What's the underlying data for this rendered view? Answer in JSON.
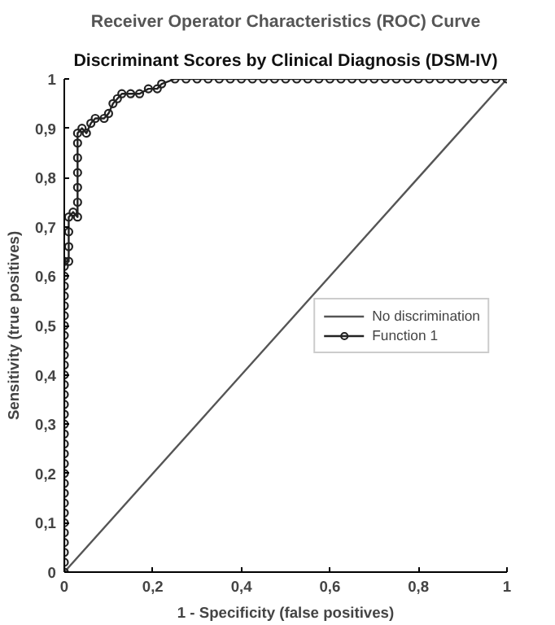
{
  "chart_data": {
    "type": "line",
    "title": "Receiver Operator Characteristics (ROC) Curve",
    "subtitle": "Discriminant Scores by Clinical Diagnosis (DSM-IV)",
    "xlabel": "1 - Specificity (false positives)",
    "ylabel": "Sensitivity (true positives)",
    "xlim": [
      0,
      1
    ],
    "ylim": [
      0,
      1
    ],
    "xticks": [
      0,
      {
        "value": 0.2,
        "label": "0,2"
      },
      {
        "value": 0.4,
        "label": "0,4"
      },
      {
        "value": 0.6,
        "label": "0,6"
      },
      {
        "value": 0.8,
        "label": "0,8"
      },
      1
    ],
    "yticks": [
      0,
      {
        "value": 0.1,
        "label": "0,1"
      },
      {
        "value": 0.2,
        "label": "0,2"
      },
      {
        "value": 0.3,
        "label": "0,3"
      },
      {
        "value": 0.4,
        "label": "0,4"
      },
      {
        "value": 0.5,
        "label": "0,5"
      },
      {
        "value": 0.6,
        "label": "0,6"
      },
      {
        "value": 0.7,
        "label": "0,7"
      },
      {
        "value": 0.8,
        "label": "0,8"
      },
      {
        "value": 0.9,
        "label": "0,9"
      },
      1
    ],
    "grid": false,
    "legend": "right",
    "series": [
      {
        "name": "No discrimination",
        "color": "#555555",
        "x": [
          0,
          1
        ],
        "values": [
          0,
          1
        ]
      },
      {
        "name": "Function 1",
        "color": "#222222",
        "marker": "circle",
        "x": [
          0,
          0,
          0,
          0,
          0,
          0,
          0,
          0,
          0,
          0,
          0,
          0,
          0,
          0,
          0,
          0,
          0,
          0,
          0,
          0,
          0,
          0,
          0,
          0,
          0,
          0,
          0,
          0,
          0,
          0,
          0,
          0,
          0,
          0.01,
          0.01,
          0.01,
          0.01,
          0.02,
          0.03,
          0.03,
          0.03,
          0.03,
          0.03,
          0.03,
          0.03,
          0.04,
          0.05,
          0.06,
          0.07,
          0.09,
          0.1,
          0.11,
          0.12,
          0.13,
          0.15,
          0.17,
          0.19,
          0.21,
          0.22,
          0.25,
          0.275,
          0.3,
          0.325,
          0.35,
          0.375,
          0.4,
          0.425,
          0.45,
          0.475,
          0.5,
          0.525,
          0.55,
          0.575,
          0.6,
          0.625,
          0.65,
          0.675,
          0.7,
          0.725,
          0.75,
          0.775,
          0.8,
          0.825,
          0.85,
          0.875,
          0.9,
          0.925,
          0.95,
          0.975,
          1
        ],
        "values": [
          0,
          0.02,
          0.04,
          0.06,
          0.08,
          0.1,
          0.12,
          0.14,
          0.16,
          0.18,
          0.2,
          0.22,
          0.24,
          0.26,
          0.28,
          0.3,
          0.32,
          0.34,
          0.36,
          0.38,
          0.4,
          0.42,
          0.44,
          0.46,
          0.48,
          0.5,
          0.52,
          0.54,
          0.56,
          0.58,
          0.6,
          0.62,
          0.63,
          0.63,
          0.66,
          0.69,
          0.72,
          0.73,
          0.72,
          0.75,
          0.78,
          0.81,
          0.84,
          0.87,
          0.89,
          0.9,
          0.89,
          0.91,
          0.92,
          0.92,
          0.93,
          0.95,
          0.96,
          0.97,
          0.97,
          0.97,
          0.98,
          0.98,
          0.99,
          1,
          1,
          1,
          1,
          1,
          1,
          1,
          1,
          1,
          1,
          1,
          1,
          1,
          1,
          1,
          1,
          1,
          1,
          1,
          1,
          1,
          1,
          1,
          1,
          1,
          1,
          1,
          1,
          1,
          1,
          1
        ]
      }
    ]
  }
}
